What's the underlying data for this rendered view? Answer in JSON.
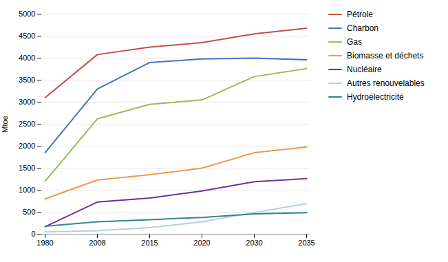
{
  "chart_data": {
    "type": "line",
    "ylabel": "Mtoe",
    "categories": [
      "1980",
      "2008",
      "2015",
      "2020",
      "2030",
      "2035"
    ],
    "series": [
      {
        "name": "Pétrole",
        "color": "#C0504D",
        "values": [
          3100,
          4080,
          4250,
          4350,
          4550,
          4680
        ]
      },
      {
        "name": "Charbon",
        "color": "#4472C4",
        "values": [
          1850,
          3300,
          3900,
          3980,
          4000,
          3960
        ]
      },
      {
        "name": "Gas",
        "color": "#9BBB59",
        "values": [
          1200,
          2620,
          2950,
          3050,
          3580,
          3760
        ]
      },
      {
        "name": "Biomasse et déchets",
        "color": "#F79646",
        "values": [
          800,
          1230,
          1350,
          1500,
          1850,
          1980
        ]
      },
      {
        "name": "Nucléaire",
        "color": "#7030A0",
        "values": [
          170,
          730,
          820,
          980,
          1190,
          1260
        ]
      },
      {
        "name": "Autres renouvelables",
        "color": "#B8CCE4",
        "values": [
          50,
          80,
          150,
          280,
          490,
          690
        ]
      },
      {
        "name": "Hydroélectricité",
        "color": "#31849B",
        "values": [
          180,
          280,
          330,
          380,
          460,
          490
        ]
      }
    ],
    "ylim": [
      0,
      5000
    ],
    "yticks": [
      0,
      500,
      1000,
      1500,
      2000,
      2500,
      3000,
      3500,
      4000,
      4500,
      5000
    ],
    "grid": true,
    "legend": "right"
  }
}
